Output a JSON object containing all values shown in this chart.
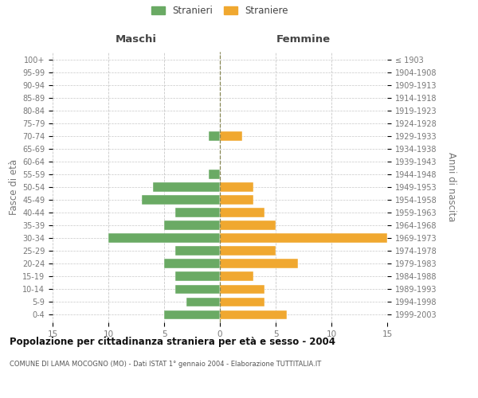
{
  "age_groups": [
    "0-4",
    "5-9",
    "10-14",
    "15-19",
    "20-24",
    "25-29",
    "30-34",
    "35-39",
    "40-44",
    "45-49",
    "50-54",
    "55-59",
    "60-64",
    "65-69",
    "70-74",
    "75-79",
    "80-84",
    "85-89",
    "90-94",
    "95-99",
    "100+"
  ],
  "birth_years": [
    "1999-2003",
    "1994-1998",
    "1989-1993",
    "1984-1988",
    "1979-1983",
    "1974-1978",
    "1969-1973",
    "1964-1968",
    "1959-1963",
    "1954-1958",
    "1949-1953",
    "1944-1948",
    "1939-1943",
    "1934-1938",
    "1929-1933",
    "1924-1928",
    "1919-1923",
    "1914-1918",
    "1909-1913",
    "1904-1908",
    "≤ 1903"
  ],
  "males": [
    5,
    3,
    4,
    4,
    5,
    4,
    10,
    5,
    4,
    7,
    6,
    1,
    0,
    0,
    1,
    0,
    0,
    0,
    0,
    0,
    0
  ],
  "females": [
    6,
    4,
    4,
    3,
    7,
    5,
    15,
    5,
    4,
    3,
    3,
    0,
    0,
    0,
    2,
    0,
    0,
    0,
    0,
    0,
    0
  ],
  "male_color": "#6aaa64",
  "female_color": "#f0a830",
  "title": "Popolazione per cittadinanza straniera per età e sesso - 2004",
  "subtitle": "COMUNE DI LAMA MOCOGNO (MO) - Dati ISTAT 1° gennaio 2004 - Elaborazione TUTTITALIA.IT",
  "left_header": "Maschi",
  "right_header": "Femmine",
  "ylabel_left": "Fasce di età",
  "ylabel_right": "Anni di nascita",
  "legend_male": "Stranieri",
  "legend_female": "Straniere",
  "xlim": 15,
  "bg_color": "#ffffff",
  "grid_color": "#c8c8c8",
  "axis_label_color": "#777777",
  "center_line_color": "#888855"
}
